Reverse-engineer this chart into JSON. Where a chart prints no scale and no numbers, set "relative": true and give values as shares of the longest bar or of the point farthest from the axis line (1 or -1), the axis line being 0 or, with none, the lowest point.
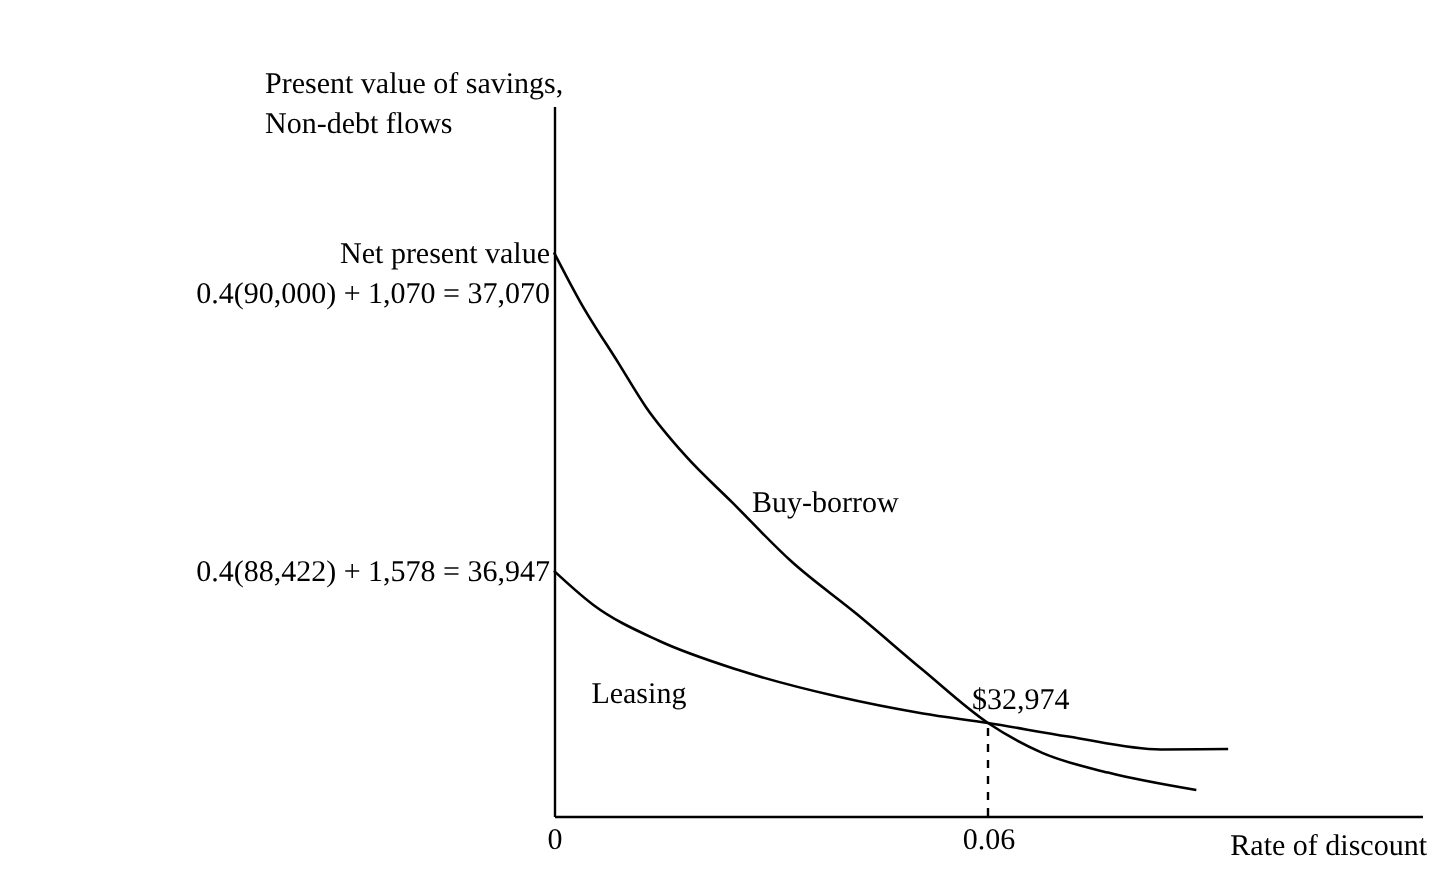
{
  "chart_data": {
    "type": "line",
    "relative": true,
    "ylabel": "Present value of savings,\nNon-debt flows",
    "xlabel": "Rate of discount",
    "xlim": [
      0,
      0.12
    ],
    "xticks": [
      0,
      0.06
    ],
    "legend": false,
    "line_style": "solid",
    "marker": "none",
    "series": [
      {
        "name": "Buy-borrow",
        "color": "#000000",
        "x": [
          0,
          0.0036,
          0.009,
          0.0127,
          0.0182,
          0.0246,
          0.0328,
          0.0419,
          0.051,
          0.06,
          0.0675,
          0.0766,
          0.0888
        ],
        "values": [
          1.0,
          0.913,
          0.802,
          0.726,
          0.639,
          0.557,
          0.452,
          0.358,
          0.259,
          0.165,
          0.112,
          0.077,
          0.046
        ]
      },
      {
        "name": "Leasing",
        "color": "#000000",
        "x": [
          0,
          0.0054,
          0.0145,
          0.0255,
          0.0392,
          0.051,
          0.06,
          0.0711,
          0.0839,
          0.0932
        ],
        "values": [
          0.435,
          0.375,
          0.311,
          0.259,
          0.212,
          0.182,
          0.165,
          0.141,
          0.118,
          0.119
        ]
      }
    ],
    "annotations": [
      "Net present value\n0.4(90,000) + 1,070 = 37,070",
      "0.4(88,422) + 1,578 = 36,947",
      {
        "text": "$32,974",
        "x": 0.06,
        "y": 0.165
      }
    ],
    "ref_lines": [
      {
        "axis": "x",
        "value": 0.06,
        "line_style": "dashed",
        "color": "#000000"
      }
    ]
  }
}
